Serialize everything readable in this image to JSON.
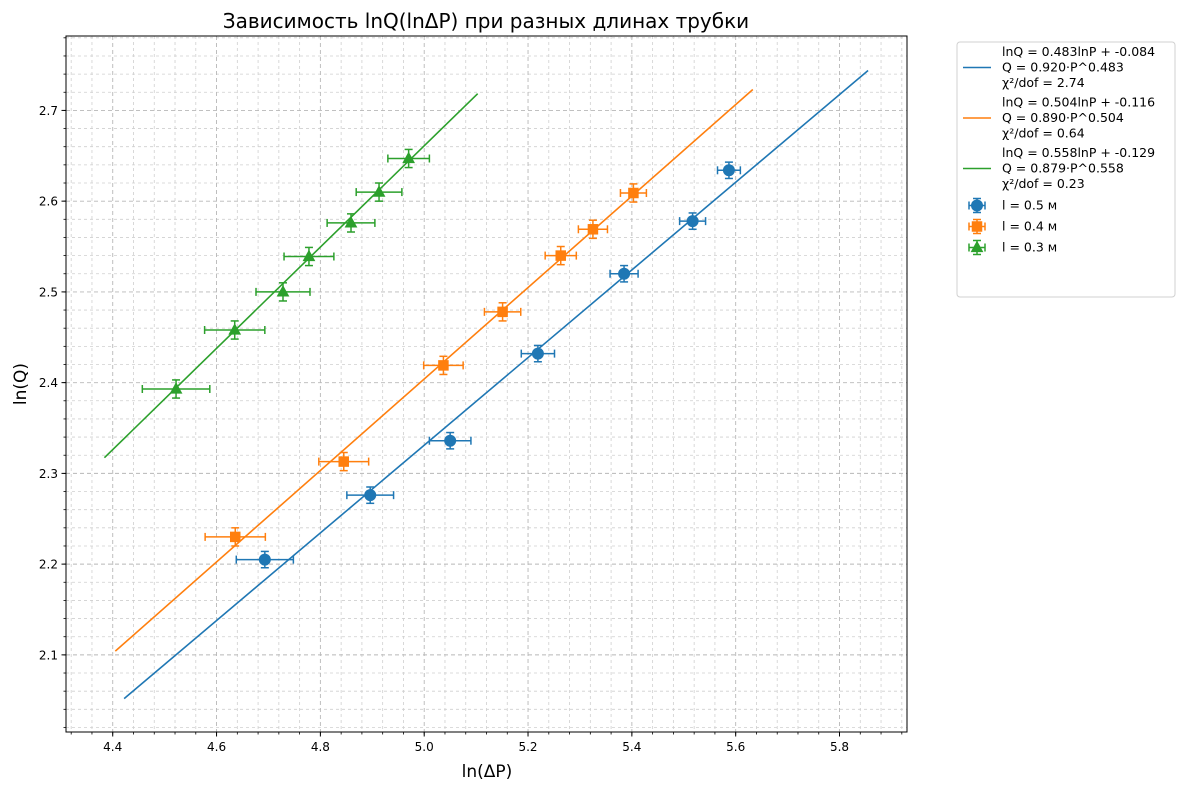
{
  "chart_data": {
    "type": "scatter",
    "title": "Зависимость lnQ(lnΔP) при разных длинах трубки",
    "xlabel": "ln(ΔP)",
    "ylabel": "ln(Q)",
    "xlim": [
      4.31,
      5.93
    ],
    "ylim": [
      2.015,
      2.782
    ],
    "x_ticks": [
      4.4,
      4.6,
      4.8,
      5.0,
      5.2,
      5.4,
      5.6,
      5.8
    ],
    "x_tick_labels": [
      "4.4",
      "4.6",
      "4.8",
      "5.0",
      "5.2",
      "5.4",
      "5.6",
      "5.8"
    ],
    "y_ticks": [
      2.1,
      2.2,
      2.3,
      2.4,
      2.5,
      2.6,
      2.7
    ],
    "y_tick_labels": [
      "2.1",
      "2.2",
      "2.3",
      "2.4",
      "2.5",
      "2.6",
      "2.7"
    ],
    "grid": true,
    "minor_grid": true,
    "legend_position": "outside-top-right",
    "series": [
      {
        "name": "l = 0.5 м",
        "color": "#1f77b4",
        "marker": "circle",
        "x": [
          4.693,
          4.896,
          5.05,
          5.219,
          5.385,
          5.517,
          5.587
        ],
        "y": [
          2.205,
          2.276,
          2.336,
          2.432,
          2.52,
          2.578,
          2.634
        ],
        "xerr": [
          0.055,
          0.045,
          0.04,
          0.032,
          0.027,
          0.025,
          0.022
        ],
        "yerr": [
          0.009,
          0.009,
          0.009,
          0.009,
          0.009,
          0.009,
          0.009
        ],
        "fit": {
          "label_lines": [
            "lnQ = 0.483lnP + -0.084",
            "Q = 0.920·P^0.483",
            "χ²/dof = 2.74"
          ],
          "slope": 0.483,
          "intercept": -0.084,
          "x_range": [
            4.422,
            5.855
          ]
        }
      },
      {
        "name": "l = 0.4 м",
        "color": "#ff7f0e",
        "marker": "square",
        "x": [
          4.636,
          4.845,
          5.037,
          5.151,
          5.263,
          5.325,
          5.403
        ],
        "y": [
          2.23,
          2.313,
          2.419,
          2.478,
          2.54,
          2.569,
          2.609
        ],
        "xerr": [
          0.058,
          0.048,
          0.038,
          0.035,
          0.03,
          0.028,
          0.025
        ],
        "yerr": [
          0.01,
          0.01,
          0.01,
          0.01,
          0.01,
          0.01,
          0.01
        ],
        "fit": {
          "label_lines": [
            "lnQ = 0.504lnP + -0.116",
            "Q = 0.890·P^0.504",
            "χ²/dof = 0.64"
          ],
          "slope": 0.504,
          "intercept": -0.116,
          "x_range": [
            4.405,
            5.633
          ]
        }
      },
      {
        "name": "l = 0.3 м",
        "color": "#2ca02c",
        "marker": "triangle",
        "x": [
          4.522,
          4.635,
          4.728,
          4.778,
          4.859,
          4.913,
          4.97
        ],
        "y": [
          2.393,
          2.458,
          2.5,
          2.539,
          2.576,
          2.61,
          2.647
        ],
        "xerr": [
          0.065,
          0.058,
          0.052,
          0.048,
          0.046,
          0.044,
          0.04
        ],
        "yerr": [
          0.01,
          0.01,
          0.01,
          0.01,
          0.01,
          0.01,
          0.01
        ],
        "fit": {
          "label_lines": [
            "lnQ = 0.558lnP + -0.129",
            "Q = 0.879·P^0.558",
            "χ²/dof = 0.23"
          ],
          "slope": 0.558,
          "intercept": -0.129,
          "x_range": [
            4.384,
            5.103
          ]
        }
      }
    ]
  }
}
